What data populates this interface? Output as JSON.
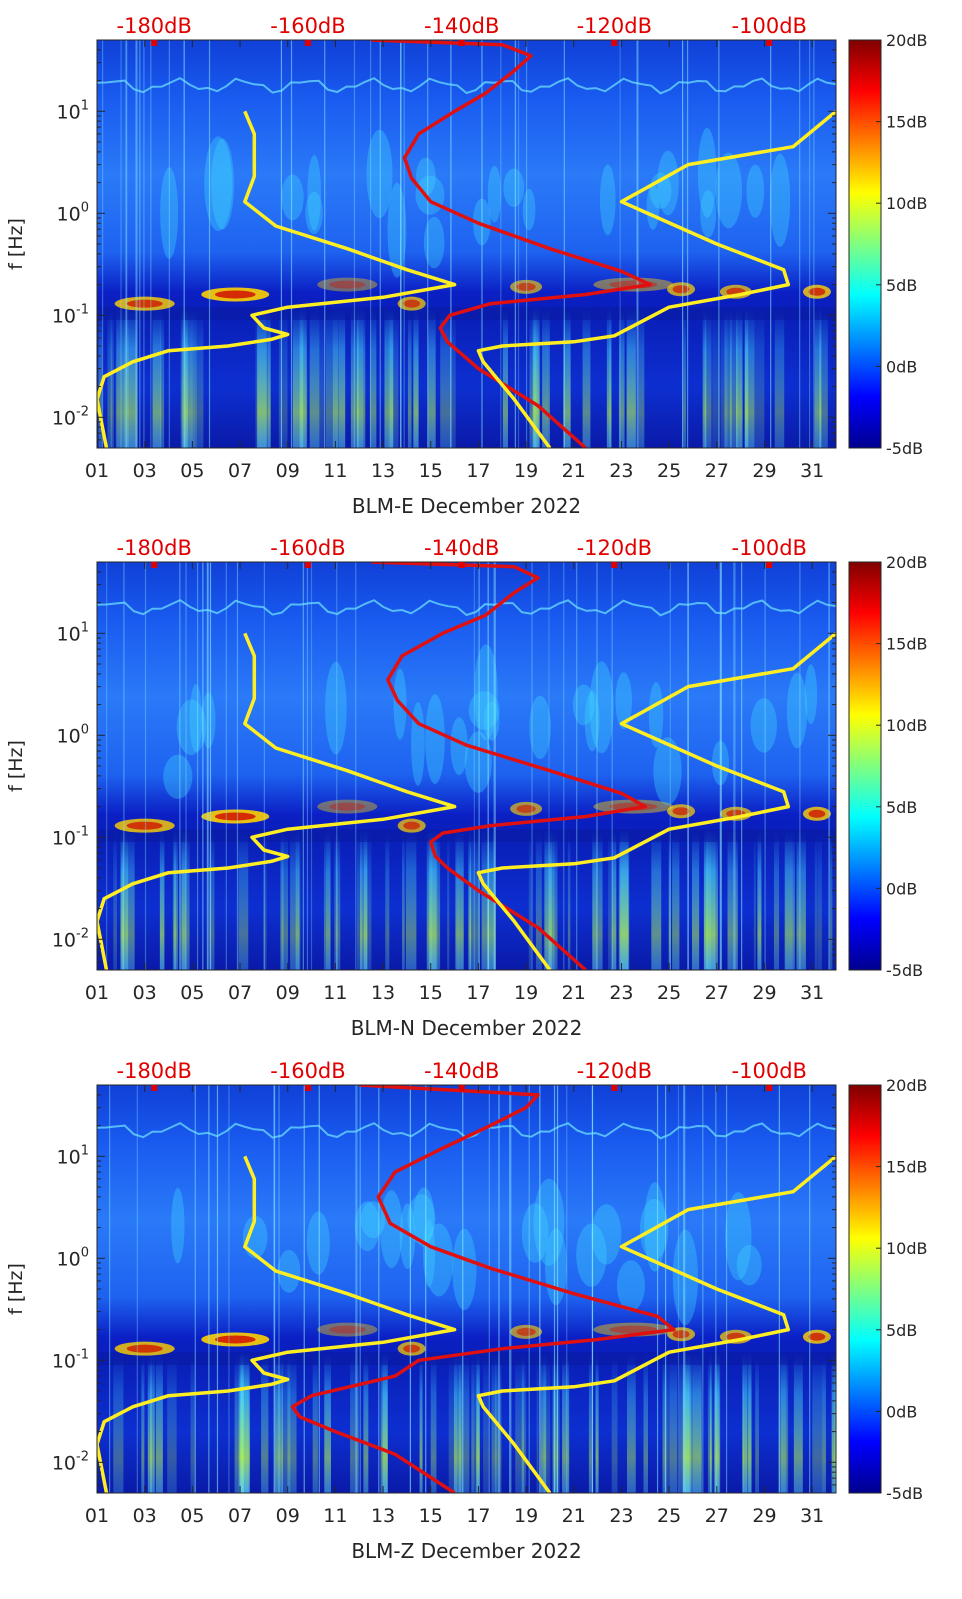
{
  "chart_data": [
    {
      "type": "heatmap",
      "xlabel": "BLM-E December 2022",
      "ylabel": "f [Hz]",
      "x_ticks": [
        "01",
        "03",
        "05",
        "07",
        "09",
        "11",
        "13",
        "15",
        "17",
        "19",
        "21",
        "23",
        "25",
        "27",
        "29",
        "31"
      ],
      "xlim": [
        1,
        32
      ],
      "y_scale": "log",
      "ylim": [
        0.005,
        50
      ],
      "y_ticks": [
        {
          "base": "10",
          "exp": "-2",
          "value": 0.01
        },
        {
          "base": "10",
          "exp": "-1",
          "value": 0.1
        },
        {
          "base": "10",
          "exp": "0",
          "value": 1
        },
        {
          "base": "10",
          "exp": "1",
          "value": 10
        }
      ],
      "top_axis_ticks": [
        {
          "label": "-180dB",
          "x": 3.4
        },
        {
          "label": "-160dB",
          "x": 9.85
        },
        {
          "label": "-140dB",
          "x": 16.3
        },
        {
          "label": "-120dB",
          "x": 22.7
        },
        {
          "label": "-100dB",
          "x": 29.2
        }
      ],
      "colorbar": {
        "range": [
          -5,
          20
        ],
        "ticks": [
          {
            "label": "20dB",
            "value": 20
          },
          {
            "label": "15dB",
            "value": 15
          },
          {
            "label": "10dB",
            "value": 10
          },
          {
            "label": "5dB",
            "value": 5
          },
          {
            "label": "0dB",
            "value": 0
          },
          {
            "label": "-5dB",
            "value": -5
          }
        ],
        "colormap": "jet"
      },
      "series": [
        {
          "color": "#ffee22",
          "points": [
            [
              1.4,
              0.005
            ],
            [
              1.0,
              0.015
            ],
            [
              1.3,
              0.025
            ],
            [
              2.5,
              0.035
            ],
            [
              4.0,
              0.045
            ],
            [
              6.5,
              0.05
            ],
            [
              8.3,
              0.058
            ],
            [
              9.0,
              0.065
            ],
            [
              8.0,
              0.075
            ],
            [
              7.5,
              0.1
            ],
            [
              9.0,
              0.12
            ],
            [
              13.0,
              0.15
            ],
            [
              16.0,
              0.2
            ],
            [
              14.0,
              0.28
            ],
            [
              11.5,
              0.45
            ],
            [
              8.5,
              0.75
            ],
            [
              7.2,
              1.3
            ],
            [
              7.6,
              2.3
            ],
            [
              7.6,
              6.0
            ],
            [
              7.2,
              10.0
            ]
          ]
        },
        {
          "color": "#e01010",
          "points": [
            [
              21.5,
              0.005
            ],
            [
              19.5,
              0.013
            ],
            [
              17.0,
              0.03
            ],
            [
              15.7,
              0.055
            ],
            [
              15.4,
              0.075
            ],
            [
              15.8,
              0.1
            ],
            [
              17.5,
              0.13
            ],
            [
              21.5,
              0.16
            ],
            [
              24.2,
              0.2
            ],
            [
              23.0,
              0.27
            ],
            [
              20.0,
              0.45
            ],
            [
              17.0,
              0.8
            ],
            [
              15.0,
              1.3
            ],
            [
              14.2,
              2.2
            ],
            [
              13.9,
              3.5
            ],
            [
              14.5,
              6.0
            ],
            [
              16.0,
              10.0
            ],
            [
              17.3,
              15.0
            ],
            [
              18.5,
              25.0
            ],
            [
              19.2,
              35.0
            ],
            [
              18.0,
              45.0
            ],
            [
              12.5,
              50.0
            ]
          ]
        },
        {
          "color": "#ffee22",
          "points": [
            [
              20.0,
              0.005
            ],
            [
              18.5,
              0.015
            ],
            [
              17.2,
              0.035
            ],
            [
              17.0,
              0.045
            ],
            [
              18.0,
              0.05
            ],
            [
              21.0,
              0.055
            ],
            [
              22.7,
              0.063
            ],
            [
              25.0,
              0.12
            ],
            [
              28.0,
              0.16
            ],
            [
              30.0,
              0.2
            ],
            [
              29.8,
              0.28
            ],
            [
              27.0,
              0.5
            ],
            [
              23.0,
              1.3
            ],
            [
              25.8,
              3.0
            ],
            [
              30.2,
              4.5
            ],
            [
              32.0,
              10.0
            ]
          ]
        }
      ]
    },
    {
      "type": "heatmap",
      "xlabel": "BLM-N December 2022",
      "ylabel": "f [Hz]",
      "x_ticks": [
        "01",
        "03",
        "05",
        "07",
        "09",
        "11",
        "13",
        "15",
        "17",
        "19",
        "21",
        "23",
        "25",
        "27",
        "29",
        "31"
      ],
      "xlim": [
        1,
        32
      ],
      "y_scale": "log",
      "ylim": [
        0.005,
        50
      ],
      "y_ticks": [
        {
          "base": "10",
          "exp": "-2",
          "value": 0.01
        },
        {
          "base": "10",
          "exp": "-1",
          "value": 0.1
        },
        {
          "base": "10",
          "exp": "0",
          "value": 1
        },
        {
          "base": "10",
          "exp": "1",
          "value": 10
        }
      ],
      "top_axis_ticks": [
        {
          "label": "-180dB",
          "x": 3.4
        },
        {
          "label": "-160dB",
          "x": 9.85
        },
        {
          "label": "-140dB",
          "x": 16.3
        },
        {
          "label": "-120dB",
          "x": 22.7
        },
        {
          "label": "-100dB",
          "x": 29.2
        }
      ],
      "colorbar": {
        "range": [
          -5,
          20
        ],
        "ticks": [
          {
            "label": "20dB",
            "value": 20
          },
          {
            "label": "15dB",
            "value": 15
          },
          {
            "label": "10dB",
            "value": 10
          },
          {
            "label": "5dB",
            "value": 5
          },
          {
            "label": "0dB",
            "value": 0
          },
          {
            "label": "-5dB",
            "value": -5
          }
        ],
        "colormap": "jet"
      },
      "series": [
        {
          "color": "#ffee22",
          "points": [
            [
              1.4,
              0.005
            ],
            [
              1.0,
              0.015
            ],
            [
              1.3,
              0.025
            ],
            [
              2.5,
              0.035
            ],
            [
              4.0,
              0.045
            ],
            [
              6.5,
              0.05
            ],
            [
              8.3,
              0.058
            ],
            [
              9.0,
              0.065
            ],
            [
              8.0,
              0.075
            ],
            [
              7.5,
              0.1
            ],
            [
              9.0,
              0.12
            ],
            [
              13.0,
              0.15
            ],
            [
              16.0,
              0.2
            ],
            [
              14.0,
              0.28
            ],
            [
              11.5,
              0.45
            ],
            [
              8.5,
              0.75
            ],
            [
              7.2,
              1.3
            ],
            [
              7.6,
              2.3
            ],
            [
              7.6,
              6.0
            ],
            [
              7.2,
              10.0
            ]
          ]
        },
        {
          "color": "#e01010",
          "points": [
            [
              21.5,
              0.005
            ],
            [
              19.5,
              0.013
            ],
            [
              17.0,
              0.03
            ],
            [
              15.7,
              0.05
            ],
            [
              15.2,
              0.065
            ],
            [
              15.0,
              0.09
            ],
            [
              15.5,
              0.11
            ],
            [
              17.5,
              0.13
            ],
            [
              21.5,
              0.16
            ],
            [
              24.0,
              0.2
            ],
            [
              23.0,
              0.27
            ],
            [
              20.0,
              0.45
            ],
            [
              16.5,
              0.8
            ],
            [
              14.5,
              1.3
            ],
            [
              13.6,
              2.2
            ],
            [
              13.2,
              3.5
            ],
            [
              13.8,
              6.0
            ],
            [
              15.5,
              10.0
            ],
            [
              17.3,
              15.0
            ],
            [
              18.5,
              25.0
            ],
            [
              19.5,
              35.0
            ],
            [
              18.5,
              45.0
            ],
            [
              12.5,
              50.0
            ]
          ]
        },
        {
          "color": "#ffee22",
          "points": [
            [
              20.0,
              0.005
            ],
            [
              18.5,
              0.015
            ],
            [
              17.2,
              0.035
            ],
            [
              17.0,
              0.045
            ],
            [
              18.0,
              0.05
            ],
            [
              21.0,
              0.055
            ],
            [
              22.7,
              0.063
            ],
            [
              25.0,
              0.12
            ],
            [
              28.0,
              0.16
            ],
            [
              30.0,
              0.2
            ],
            [
              29.8,
              0.28
            ],
            [
              27.0,
              0.5
            ],
            [
              23.0,
              1.3
            ],
            [
              25.8,
              3.0
            ],
            [
              30.2,
              4.5
            ],
            [
              32.0,
              10.0
            ]
          ]
        }
      ]
    },
    {
      "type": "heatmap",
      "xlabel": "BLM-Z December 2022",
      "ylabel": "f [Hz]",
      "x_ticks": [
        "01",
        "03",
        "05",
        "07",
        "09",
        "11",
        "13",
        "15",
        "17",
        "19",
        "21",
        "23",
        "25",
        "27",
        "29",
        "31"
      ],
      "xlim": [
        1,
        32
      ],
      "y_scale": "log",
      "ylim": [
        0.005,
        50
      ],
      "y_ticks": [
        {
          "base": "10",
          "exp": "-2",
          "value": 0.01
        },
        {
          "base": "10",
          "exp": "-1",
          "value": 0.1
        },
        {
          "base": "10",
          "exp": "0",
          "value": 1
        },
        {
          "base": "10",
          "exp": "1",
          "value": 10
        }
      ],
      "top_axis_ticks": [
        {
          "label": "-180dB",
          "x": 3.4
        },
        {
          "label": "-160dB",
          "x": 9.85
        },
        {
          "label": "-140dB",
          "x": 16.3
        },
        {
          "label": "-120dB",
          "x": 22.7
        },
        {
          "label": "-100dB",
          "x": 29.2
        }
      ],
      "colorbar": {
        "range": [
          -5,
          20
        ],
        "ticks": [
          {
            "label": "20dB",
            "value": 20
          },
          {
            "label": "15dB",
            "value": 15
          },
          {
            "label": "10dB",
            "value": 10
          },
          {
            "label": "5dB",
            "value": 5
          },
          {
            "label": "0dB",
            "value": 0
          },
          {
            "label": "-5dB",
            "value": -5
          }
        ],
        "colormap": "jet"
      },
      "series": [
        {
          "color": "#ffee22",
          "points": [
            [
              1.4,
              0.005
            ],
            [
              1.0,
              0.015
            ],
            [
              1.3,
              0.025
            ],
            [
              2.5,
              0.035
            ],
            [
              4.0,
              0.045
            ],
            [
              6.5,
              0.05
            ],
            [
              8.3,
              0.058
            ],
            [
              9.0,
              0.065
            ],
            [
              8.0,
              0.075
            ],
            [
              7.5,
              0.1
            ],
            [
              9.0,
              0.12
            ],
            [
              13.0,
              0.15
            ],
            [
              16.0,
              0.2
            ],
            [
              14.0,
              0.28
            ],
            [
              11.5,
              0.45
            ],
            [
              8.5,
              0.75
            ],
            [
              7.2,
              1.3
            ],
            [
              7.6,
              2.3
            ],
            [
              7.6,
              6.0
            ],
            [
              7.2,
              10.0
            ]
          ]
        },
        {
          "color": "#e01010",
          "points": [
            [
              16.0,
              0.005
            ],
            [
              13.5,
              0.012
            ],
            [
              11.0,
              0.02
            ],
            [
              9.5,
              0.028
            ],
            [
              9.2,
              0.035
            ],
            [
              10.0,
              0.045
            ],
            [
              13.5,
              0.07
            ],
            [
              14.5,
              0.1
            ],
            [
              18.0,
              0.13
            ],
            [
              22.0,
              0.16
            ],
            [
              25.2,
              0.2
            ],
            [
              24.5,
              0.27
            ],
            [
              21.0,
              0.45
            ],
            [
              17.5,
              0.8
            ],
            [
              15.0,
              1.3
            ],
            [
              13.3,
              2.2
            ],
            [
              12.8,
              4.0
            ],
            [
              13.5,
              7.0
            ],
            [
              15.5,
              12.0
            ],
            [
              17.5,
              20.0
            ],
            [
              19.0,
              30.0
            ],
            [
              19.5,
              40.0
            ],
            [
              12.0,
              50.0
            ]
          ]
        },
        {
          "color": "#ffee22",
          "points": [
            [
              20.0,
              0.005
            ],
            [
              18.5,
              0.015
            ],
            [
              17.2,
              0.035
            ],
            [
              17.0,
              0.045
            ],
            [
              18.0,
              0.05
            ],
            [
              21.0,
              0.055
            ],
            [
              22.7,
              0.063
            ],
            [
              25.0,
              0.12
            ],
            [
              28.0,
              0.16
            ],
            [
              30.0,
              0.2
            ],
            [
              29.8,
              0.28
            ],
            [
              27.0,
              0.5
            ],
            [
              23.0,
              1.3
            ],
            [
              25.8,
              3.0
            ],
            [
              30.2,
              4.5
            ],
            [
              32.0,
              10.0
            ]
          ]
        }
      ]
    }
  ]
}
